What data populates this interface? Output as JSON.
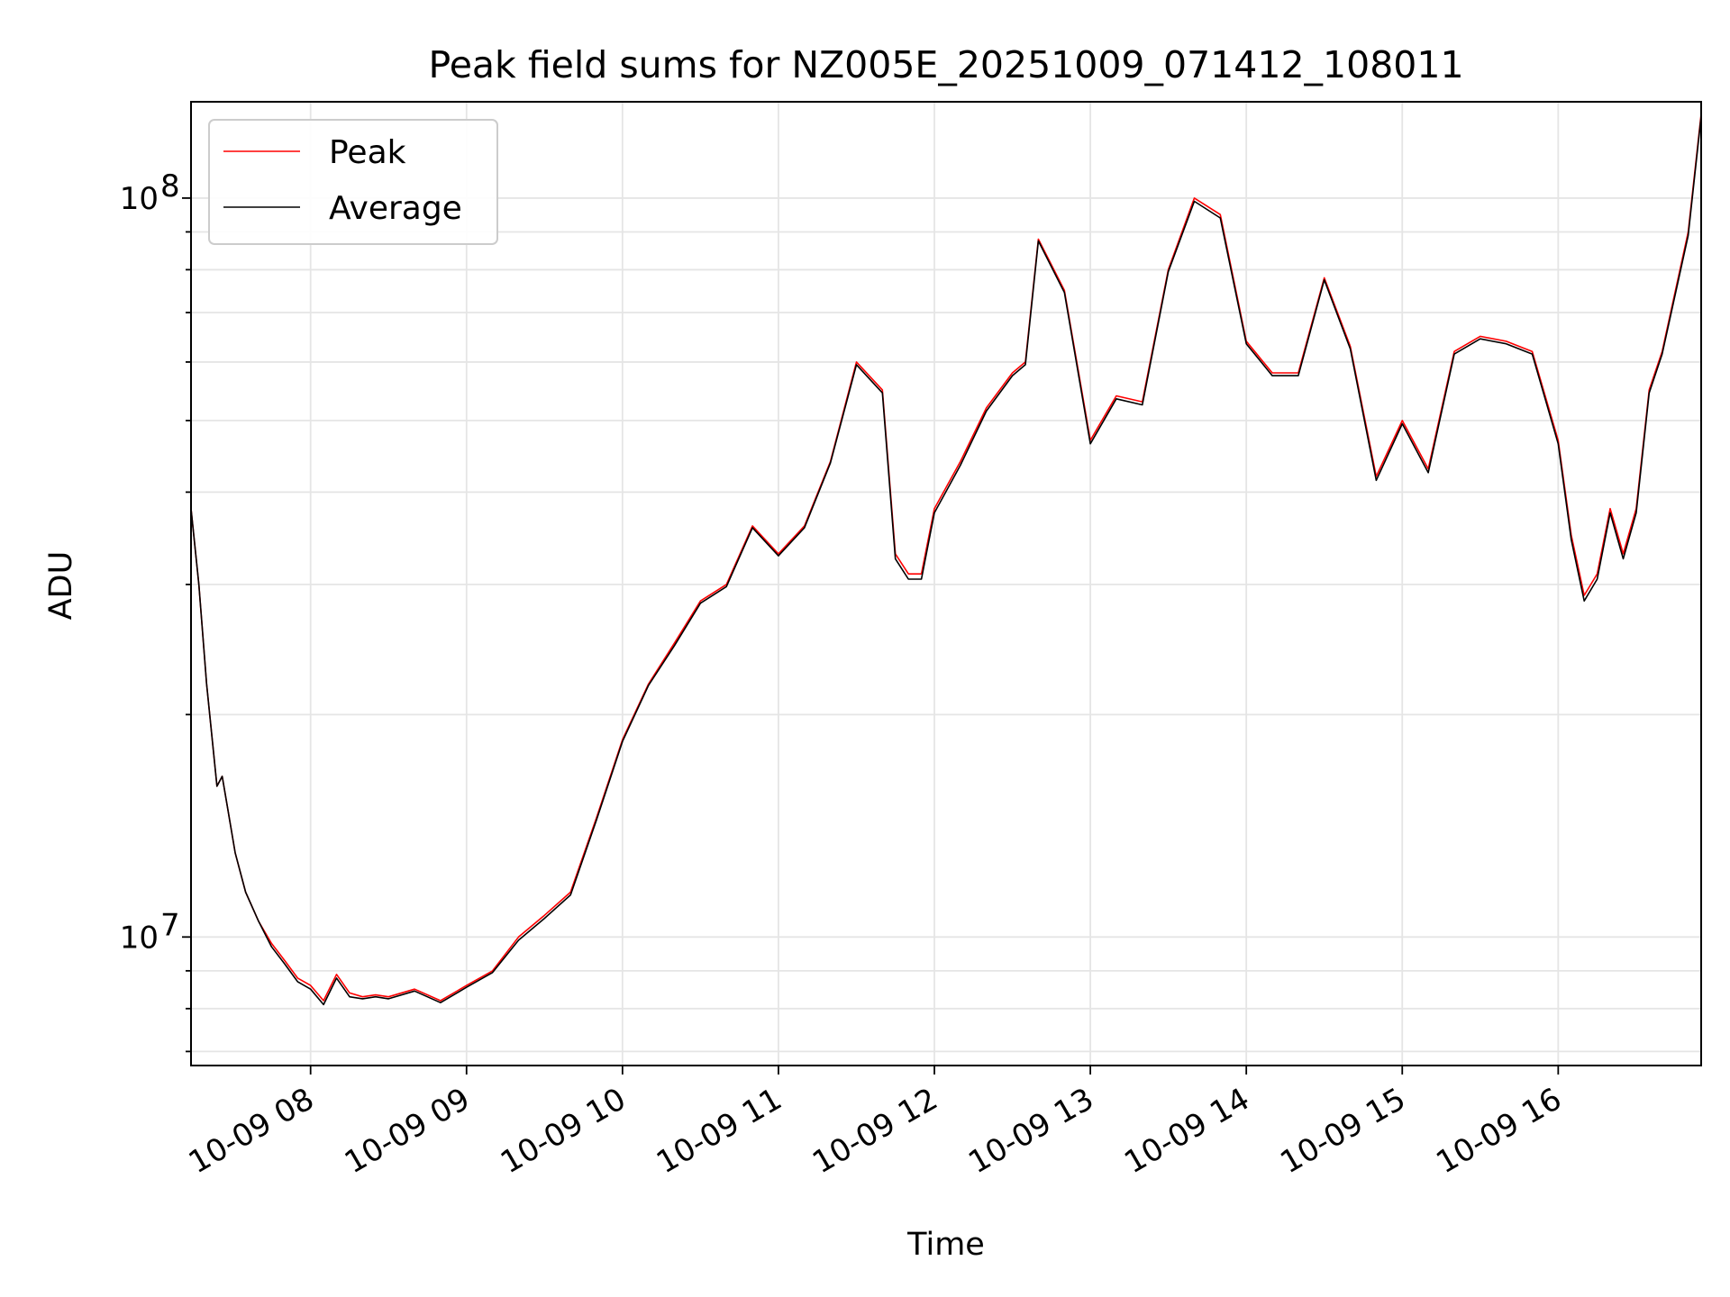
{
  "chart_data": {
    "type": "line",
    "title": "Peak field sums for NZ005E_20251009_071412_108011",
    "xlabel": "Time",
    "ylabel": "ADU",
    "yscale": "log",
    "grid": true,
    "legend_position": "top-left",
    "xlim": [
      "2025-10-09 07:14",
      "2025-10-09 16:55"
    ],
    "ylim": [
      6700000,
      135000000
    ],
    "x_ticks": [
      "10-09 08",
      "10-09 09",
      "10-09 10",
      "10-09 11",
      "10-09 12",
      "10-09 13",
      "10-09 14",
      "10-09 15",
      "10-09 16"
    ],
    "y_ticks": [
      {
        "base": "10",
        "exp": "7",
        "value": 10000000
      },
      {
        "base": "10",
        "exp": "8",
        "value": 100000000
      }
    ],
    "x": [
      "07:14",
      "07:17",
      "07:20",
      "07:24",
      "07:26",
      "07:28",
      "07:31",
      "07:35",
      "07:40",
      "07:45",
      "07:50",
      "07:55",
      "08:00",
      "08:05",
      "08:10",
      "08:15",
      "08:20",
      "08:25",
      "08:30",
      "08:40",
      "08:50",
      "09:00",
      "09:10",
      "09:20",
      "09:30",
      "09:40",
      "09:50",
      "10:00",
      "10:10",
      "10:20",
      "10:30",
      "10:40",
      "10:50",
      "11:00",
      "11:10",
      "11:20",
      "11:30",
      "11:40",
      "11:45",
      "11:50",
      "11:55",
      "12:00",
      "12:10",
      "12:20",
      "12:30",
      "12:35",
      "12:40",
      "12:50",
      "13:00",
      "13:10",
      "13:20",
      "13:30",
      "13:40",
      "13:50",
      "14:00",
      "14:10",
      "14:20",
      "14:30",
      "14:40",
      "14:50",
      "15:00",
      "15:10",
      "15:20",
      "15:30",
      "15:40",
      "15:50",
      "16:00",
      "16:05",
      "16:10",
      "16:15",
      "16:20",
      "16:25",
      "16:30",
      "16:35",
      "16:40",
      "16:50",
      "16:55"
    ],
    "series": [
      {
        "name": "Peak",
        "color": "#ff0000",
        "values": [
          38000000,
          30000000,
          22000000,
          16000000,
          16500000,
          15000000,
          13000000,
          11500000,
          10500000,
          9800000,
          9300000,
          8800000,
          8600000,
          8200000,
          8900000,
          8400000,
          8300000,
          8350000,
          8300000,
          8500000,
          8200000,
          8600000,
          9000000,
          10000000,
          10700000,
          11500000,
          14500000,
          18500000,
          22000000,
          25000000,
          28500000,
          30000000,
          36000000,
          33000000,
          36000000,
          44000000,
          60000000,
          55000000,
          33000000,
          31000000,
          31000000,
          38000000,
          44000000,
          52000000,
          58000000,
          60000000,
          88000000,
          75000000,
          47000000,
          54000000,
          53000000,
          80000000,
          100000000,
          95000000,
          64000000,
          58000000,
          58000000,
          78000000,
          63000000,
          42000000,
          50000000,
          43000000,
          62000000,
          65000000,
          64000000,
          62000000,
          47000000,
          35000000,
          29000000,
          31000000,
          38000000,
          33000000,
          38000000,
          55000000,
          62000000,
          90000000,
          130000000
        ]
      },
      {
        "name": "Average",
        "color": "#000000",
        "values": [
          38000000,
          30000000,
          22000000,
          16000000,
          16500000,
          15000000,
          13000000,
          11500000,
          10500000,
          9700000,
          9200000,
          8700000,
          8500000,
          8100000,
          8800000,
          8300000,
          8250000,
          8300000,
          8250000,
          8450000,
          8150000,
          8550000,
          8950000,
          9900000,
          10600000,
          11400000,
          14400000,
          18400000,
          21900000,
          24800000,
          28300000,
          29800000,
          35800000,
          32800000,
          35800000,
          43800000,
          59500000,
          54500000,
          32500000,
          30500000,
          30500000,
          37500000,
          43500000,
          51500000,
          57500000,
          59500000,
          87500000,
          74500000,
          46500000,
          53500000,
          52500000,
          79500000,
          99000000,
          94000000,
          63500000,
          57500000,
          57500000,
          77500000,
          62500000,
          41500000,
          49500000,
          42500000,
          61500000,
          64500000,
          63500000,
          61500000,
          46500000,
          34500000,
          28500000,
          30500000,
          37500000,
          32500000,
          37500000,
          54500000,
          61500000,
          89000000,
          129000000
        ]
      }
    ]
  }
}
